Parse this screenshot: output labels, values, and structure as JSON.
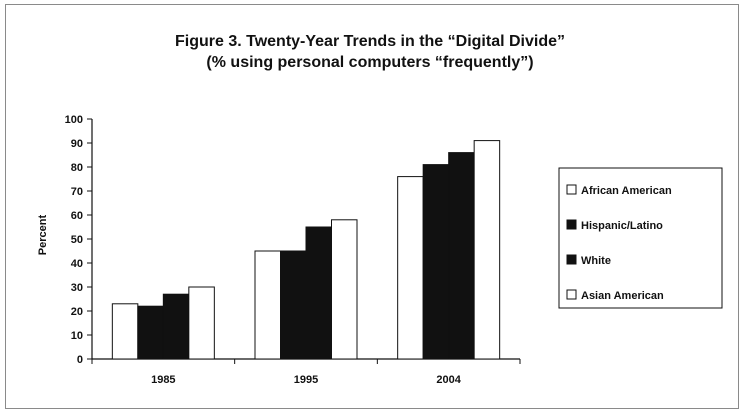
{
  "chart_data": {
    "type": "bar",
    "title_lines": [
      "Figure 3. Twenty-Year Trends in the “Digital Divide”",
      "(% using personal computers “frequently”)"
    ],
    "xlabel": "",
    "ylabel": "Percent",
    "ylim": [
      0,
      100
    ],
    "yticks": [
      "0",
      "10",
      "20",
      "30",
      "40",
      "50",
      "60",
      "70",
      "80",
      "90",
      "100"
    ],
    "categories": [
      "1985",
      "1995",
      "2004"
    ],
    "series": [
      {
        "name": "African American",
        "values": [
          23,
          45,
          76
        ],
        "color": "#ffffff"
      },
      {
        "name": "Hispanic/Latino",
        "values": [
          22,
          45,
          81
        ],
        "color": "#111111"
      },
      {
        "name": "White",
        "values": [
          27,
          55,
          86
        ],
        "color": "#111111"
      },
      {
        "name": "Asian American",
        "values": [
          30,
          58,
          91
        ],
        "color": "#ffffff"
      }
    ],
    "legend_position": "right",
    "grid": false
  }
}
